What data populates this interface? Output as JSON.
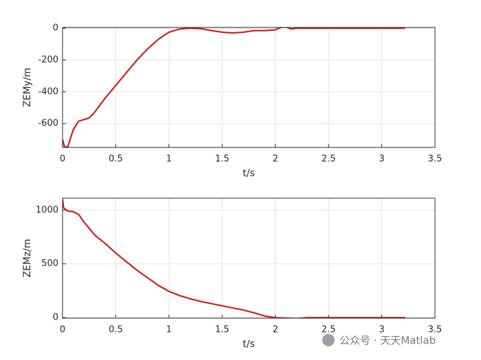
{
  "chart_data": [
    {
      "type": "line",
      "xlabel": "t/s",
      "ylabel": "ZEMy/m",
      "x": [
        0,
        0.02,
        0.05,
        0.1,
        0.15,
        0.2,
        0.25,
        0.3,
        0.4,
        0.5,
        0.6,
        0.7,
        0.8,
        0.9,
        1.0,
        1.1,
        1.2,
        1.3,
        1.4,
        1.5,
        1.6,
        1.7,
        1.8,
        1.9,
        2.0,
        2.05,
        2.1,
        2.15,
        2.2,
        2.5,
        3.0,
        3.22
      ],
      "series": [
        {
          "color": "#cc1f1a",
          "values": [
            -700,
            -750,
            -745,
            -640,
            -585,
            -575,
            -565,
            -530,
            -440,
            -360,
            -280,
            -200,
            -130,
            -70,
            -25,
            -5,
            0,
            -3,
            -15,
            -25,
            -30,
            -25,
            -15,
            -15,
            -10,
            5,
            8,
            -5,
            0,
            0,
            0,
            0
          ]
        }
      ],
      "xlim": [
        0,
        3.5
      ],
      "ylim": [
        -750,
        5
      ],
      "xticks": [
        0,
        0.5,
        1,
        1.5,
        2,
        2.5,
        3,
        3.5
      ],
      "yticks": [
        -600,
        -400,
        -200,
        0
      ],
      "grid": true
    },
    {
      "type": "line",
      "xlabel": "t/s",
      "ylabel": "ZEMz/m",
      "x": [
        0,
        0.01,
        0.05,
        0.1,
        0.15,
        0.2,
        0.3,
        0.4,
        0.5,
        0.6,
        0.7,
        0.8,
        0.9,
        1.0,
        1.1,
        1.2,
        1.3,
        1.4,
        1.5,
        1.6,
        1.7,
        1.8,
        1.9,
        2.0,
        2.1,
        2.2,
        2.3,
        2.5,
        3.0,
        3.22
      ],
      "series": [
        {
          "color": "#cc1f1a",
          "values": [
            1100,
            1020,
            990,
            985,
            960,
            890,
            770,
            690,
            600,
            520,
            440,
            370,
            300,
            245,
            205,
            175,
            150,
            130,
            110,
            90,
            70,
            45,
            15,
            0,
            -5,
            -8,
            0,
            0,
            0,
            0
          ]
        }
      ],
      "xlim": [
        0,
        3.5
      ],
      "ylim": [
        -5,
        1110
      ],
      "xticks": [
        0,
        0.5,
        1,
        1.5,
        2,
        2.5,
        3,
        3.5
      ],
      "yticks": [
        0,
        500,
        1000
      ],
      "grid": true
    }
  ],
  "watermark": "公众号 · 天天Matlab"
}
